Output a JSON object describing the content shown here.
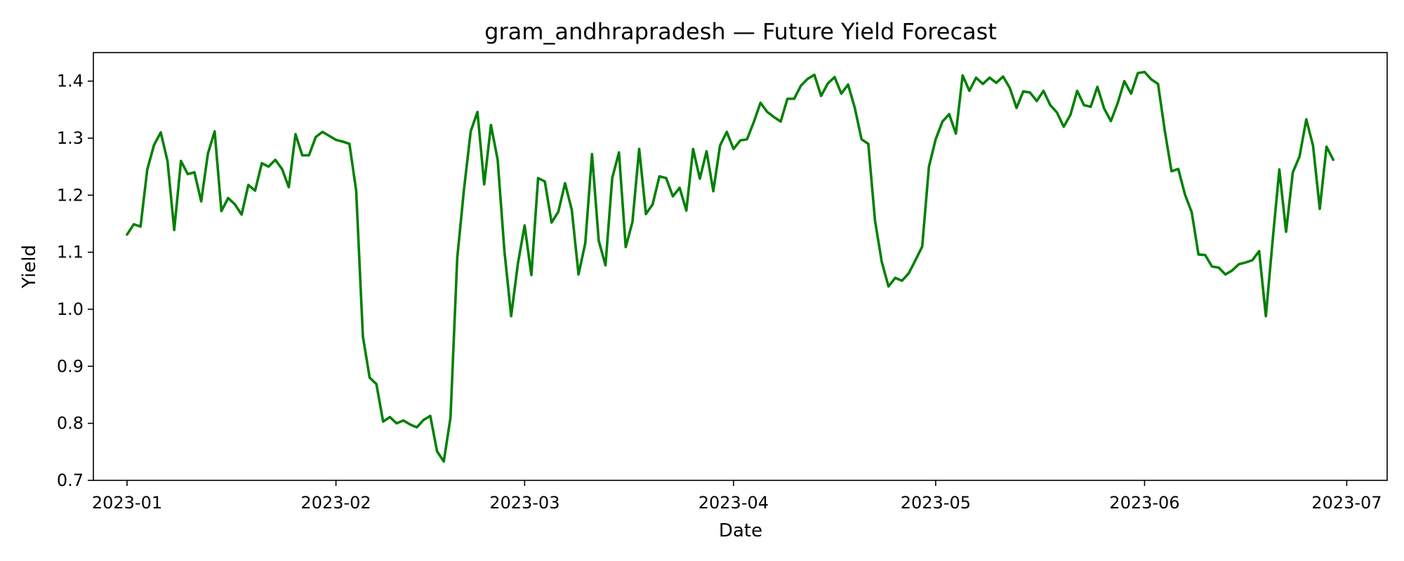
{
  "chart_data": {
    "type": "line",
    "title": "gram_andhrapradesh — Future Yield Forecast",
    "xlabel": "Date",
    "ylabel": "Yield",
    "ylim": [
      0.7,
      1.45
    ],
    "xlim": [
      "2022-12-27",
      "2023-07-07"
    ],
    "grid": false,
    "x_ticks": [
      "2023-01",
      "2023-02",
      "2023-03",
      "2023-04",
      "2023-05",
      "2023-06",
      "2023-07"
    ],
    "y_ticks": [
      "0.7",
      "0.8",
      "0.9",
      "1.0",
      "1.1",
      "1.2",
      "1.3",
      "1.4"
    ],
    "line_color": "#008000",
    "start_date": "2023-01-01",
    "step_days": 1,
    "values": [
      1.131,
      1.149,
      1.145,
      1.245,
      1.288,
      1.31,
      1.26,
      1.139,
      1.26,
      1.237,
      1.24,
      1.189,
      1.273,
      1.312,
      1.172,
      1.195,
      1.184,
      1.166,
      1.218,
      1.208,
      1.256,
      1.25,
      1.262,
      1.246,
      1.214,
      1.307,
      1.27,
      1.27,
      1.302,
      1.311,
      1.304,
      1.297,
      1.294,
      1.29,
      1.208,
      0.952,
      0.88,
      0.869,
      0.803,
      0.811,
      0.8,
      0.805,
      0.798,
      0.793,
      0.806,
      0.813,
      0.751,
      0.733,
      0.81,
      1.09,
      1.21,
      1.312,
      1.346,
      1.219,
      1.323,
      1.262,
      1.102,
      0.988,
      1.08,
      1.147,
      1.06,
      1.23,
      1.224,
      1.152,
      1.171,
      1.221,
      1.174,
      1.061,
      1.116,
      1.272,
      1.12,
      1.077,
      1.23,
      1.275,
      1.109,
      1.153,
      1.281,
      1.167,
      1.184,
      1.233,
      1.23,
      1.198,
      1.213,
      1.173,
      1.281,
      1.229,
      1.277,
      1.207,
      1.287,
      1.311,
      1.281,
      1.296,
      1.298,
      1.328,
      1.362,
      1.346,
      1.337,
      1.329,
      1.369,
      1.369,
      1.392,
      1.404,
      1.411,
      1.374,
      1.396,
      1.407,
      1.378,
      1.394,
      1.353,
      1.298,
      1.29,
      1.155,
      1.083,
      1.04,
      1.055,
      1.05,
      1.063,
      1.086,
      1.11,
      1.25,
      1.298,
      1.329,
      1.342,
      1.308,
      1.41,
      1.383,
      1.406,
      1.395,
      1.406,
      1.397,
      1.408,
      1.388,
      1.353,
      1.382,
      1.38,
      1.365,
      1.383,
      1.358,
      1.345,
      1.32,
      1.341,
      1.383,
      1.358,
      1.355,
      1.39,
      1.352,
      1.33,
      1.361,
      1.4,
      1.378,
      1.414,
      1.416,
      1.403,
      1.395,
      1.313,
      1.242,
      1.246,
      1.201,
      1.17,
      1.096,
      1.095,
      1.075,
      1.073,
      1.061,
      1.068,
      1.079,
      1.082,
      1.086,
      1.102,
      0.988,
      1.12,
      1.245,
      1.136,
      1.24,
      1.268,
      1.333,
      1.287,
      1.176,
      1.285,
      1.262
    ]
  }
}
